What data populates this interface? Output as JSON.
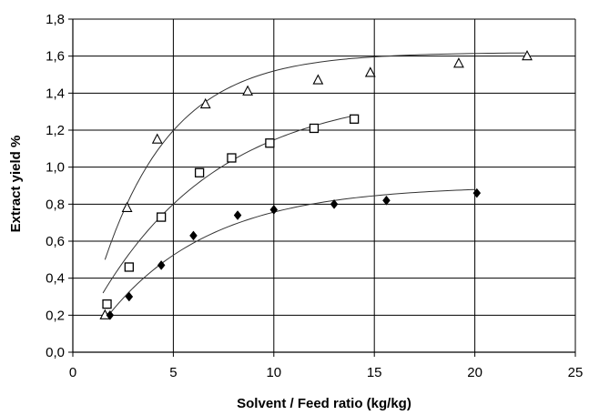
{
  "chart_data": {
    "type": "scatter",
    "xlabel": "Solvent / Feed ratio (kg/kg)",
    "ylabel": "Extract yield %",
    "xlim": [
      0,
      25
    ],
    "ylim": [
      0,
      1.8
    ],
    "x_ticks": [
      "0",
      "5",
      "10",
      "15",
      "20",
      "25"
    ],
    "y_ticks": [
      "0,0",
      "0,2",
      "0,4",
      "0,6",
      "0,8",
      "1,0",
      "1,2",
      "1,4",
      "1,6",
      "1,8"
    ],
    "grid": "vertical and horizontal major gridlines",
    "legend": "none",
    "series": [
      {
        "marker": "triangle-open",
        "x": [
          1.6,
          2.7,
          4.2,
          6.6,
          8.7,
          12.2,
          14.8,
          19.2,
          22.6
        ],
        "y": [
          0.2,
          0.78,
          1.15,
          1.34,
          1.41,
          1.47,
          1.51,
          1.56,
          1.6
        ],
        "trend": {
          "x_start": 1.6,
          "x_end": 22.5,
          "y_max": 1.62,
          "k": 0.287
        }
      },
      {
        "marker": "square-open",
        "x": [
          1.7,
          2.8,
          4.4,
          6.3,
          7.9,
          9.8,
          12.0,
          14.0
        ],
        "y": [
          0.26,
          0.46,
          0.73,
          0.97,
          1.05,
          1.13,
          1.21,
          1.26
        ],
        "trend": {
          "x_start": 1.5,
          "x_end": 14.0,
          "y_max": 1.42,
          "k": 0.164
        }
      },
      {
        "marker": "diamond-filled",
        "x": [
          1.85,
          2.8,
          4.4,
          6.0,
          8.2,
          10.0,
          13.0,
          15.6,
          20.1
        ],
        "y": [
          0.2,
          0.3,
          0.47,
          0.63,
          0.74,
          0.77,
          0.8,
          0.82,
          0.86
        ],
        "trend": {
          "x_start": 1.85,
          "x_end": 20.0,
          "y_max": 0.9,
          "k": 0.193
        }
      }
    ]
  }
}
